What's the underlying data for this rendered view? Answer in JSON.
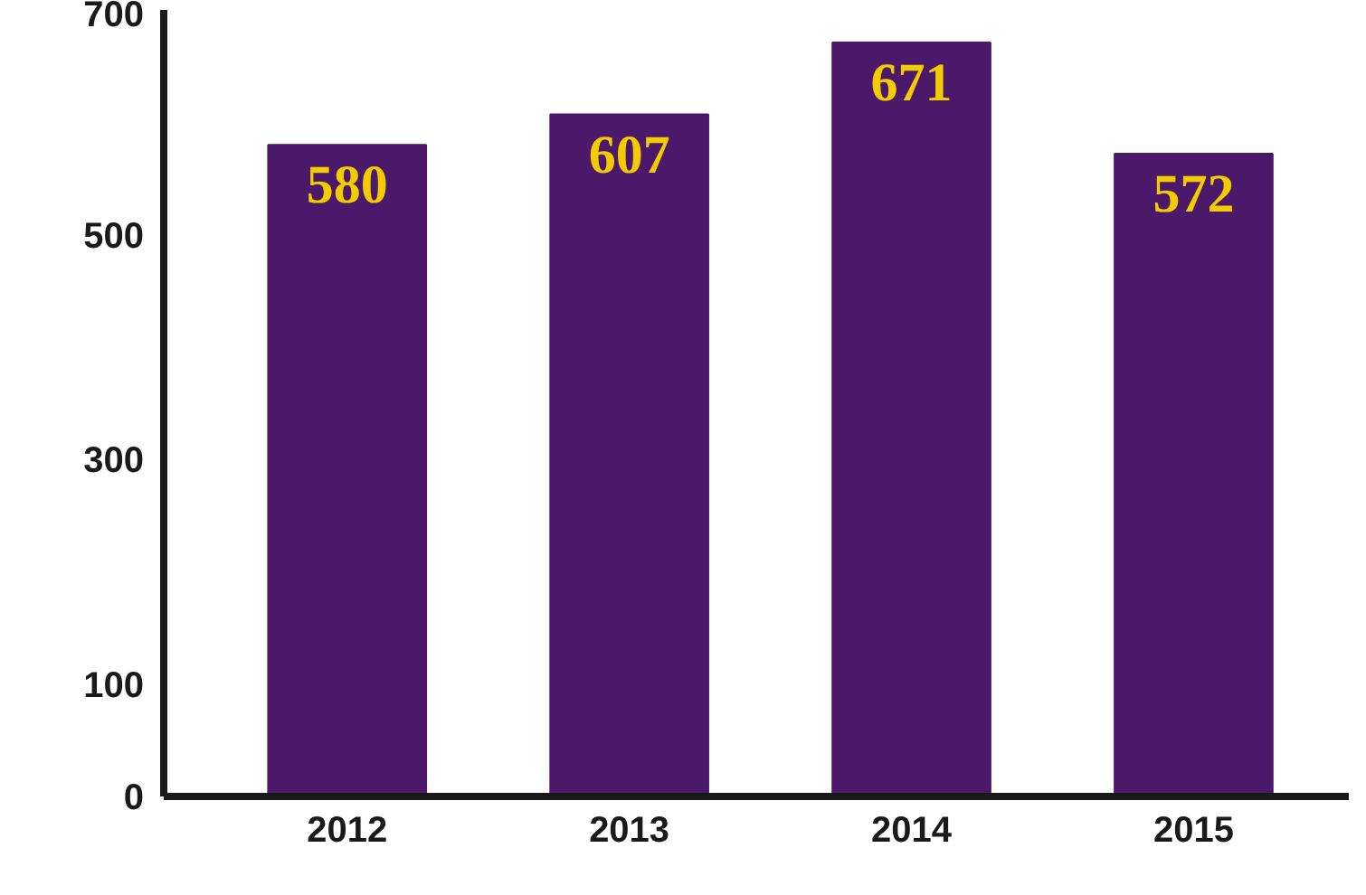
{
  "chart_data": {
    "type": "bar",
    "categories": [
      "2012",
      "2013",
      "2014",
      "2015"
    ],
    "values": [
      580,
      607,
      671,
      572
    ],
    "color": "#4b186a",
    "data_labels": true,
    "ylim": [
      0,
      700
    ],
    "yticks": [
      0,
      100,
      300,
      500,
      700
    ],
    "grid": false
  }
}
